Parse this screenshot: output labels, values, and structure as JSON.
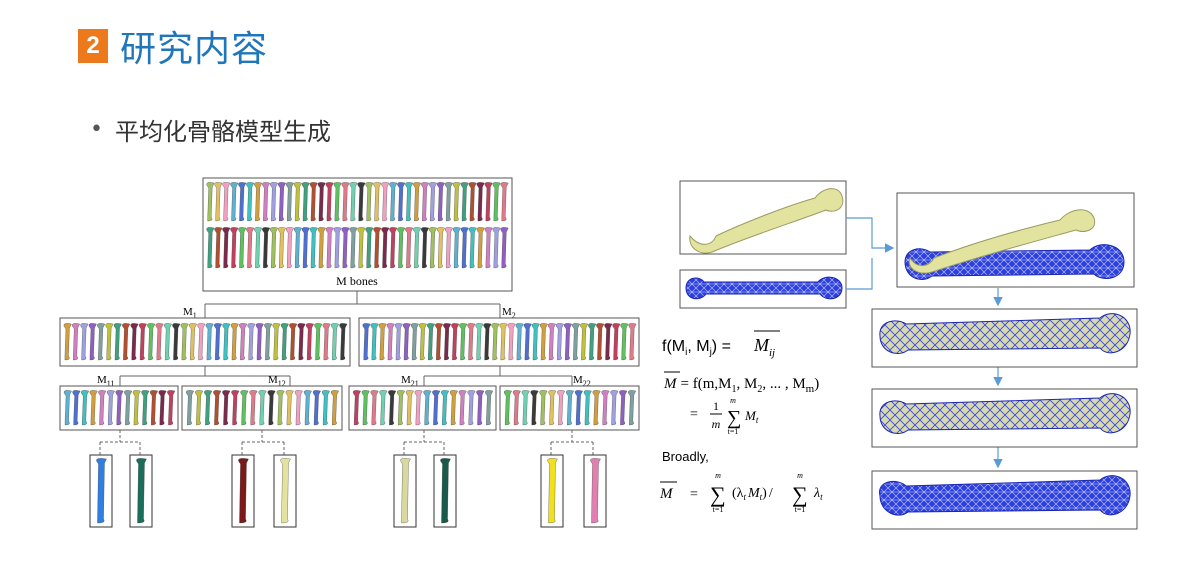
{
  "section": {
    "number": "2",
    "title": "研究内容"
  },
  "bullet": {
    "text": "平均化骨骼模型生成"
  },
  "tree": {
    "root_label": "M bones",
    "level1": [
      {
        "label": "M",
        "sub": "1"
      },
      {
        "label": "M",
        "sub": "2"
      }
    ],
    "level2": [
      {
        "label": "M",
        "sub": "11"
      },
      {
        "label": "M",
        "sub": "12"
      },
      {
        "label": "M",
        "sub": "21"
      },
      {
        "label": "M",
        "sub": "22"
      }
    ]
  },
  "formulas": {
    "f_lhs": "f(M",
    "f_i": "i",
    "f_sep": ", M",
    "f_j": "j",
    "f_rhs": ") =",
    "mbar": "M",
    "ij": "ij",
    "line2_rhs_a": "= f(m,M",
    "line2_sub1": "1",
    "line2_mid": ", M",
    "line2_sub2": "2",
    "line2_rest": ", ... , M",
    "line2_subm": "m",
    "line2_close": ")",
    "eq": "=",
    "one": "1",
    "m": "m",
    "sum": "∑",
    "t_eq_1": "t=1",
    "Mt": "M",
    "t": "t",
    "broadly": "Broadly,",
    "weighted_num": "(λ",
    "weighted_mid": "M",
    "weighted_close": ")",
    "slash": "/",
    "lambda": "λ"
  },
  "colors": {
    "accent_orange": "#ec7a1c",
    "title_blue": "#1f76ba",
    "arrow_blue": "#5b9bd5",
    "mesh_blue": "#1f2fd6",
    "bone_yellow": "#e3e3a0"
  }
}
